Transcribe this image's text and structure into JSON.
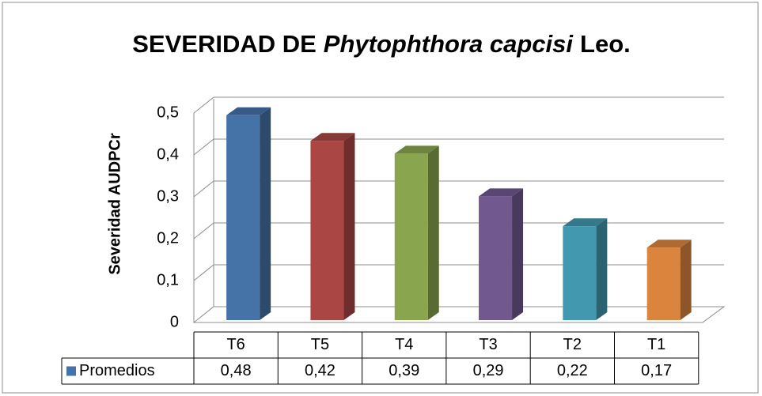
{
  "chart_data": {
    "type": "bar3d",
    "title_parts": [
      "SEVERIDAD DE",
      "Phytophthora capcisi",
      "Leo."
    ],
    "y_label": "Severidad AUDPCr",
    "categories": [
      "T6",
      "T5",
      "T4",
      "T3",
      "T2",
      "T1"
    ],
    "series": [
      {
        "name": "Promedios",
        "color": "#4572a7",
        "colors": [
          "#4572a7",
          "#aa4643",
          "#89a54e",
          "#71588f",
          "#4198af",
          "#db843d"
        ],
        "values": [
          0.48,
          0.42,
          0.39,
          0.29,
          0.22,
          0.17
        ],
        "value_labels": [
          "0,48",
          "0,42",
          "0,39",
          "0,29",
          "0,22",
          "0,17"
        ]
      }
    ],
    "ylim": [
      0,
      0.5
    ],
    "yticks": [
      0,
      {
        "value": 0.1,
        "label": "0,1"
      },
      {
        "value": 0.2,
        "label": "0,2"
      },
      {
        "value": 0.3,
        "label": "0,3"
      },
      {
        "value": 0.4,
        "label": "0,4"
      },
      {
        "value": 0.5,
        "label": "0,5"
      }
    ],
    "grid": true
  }
}
